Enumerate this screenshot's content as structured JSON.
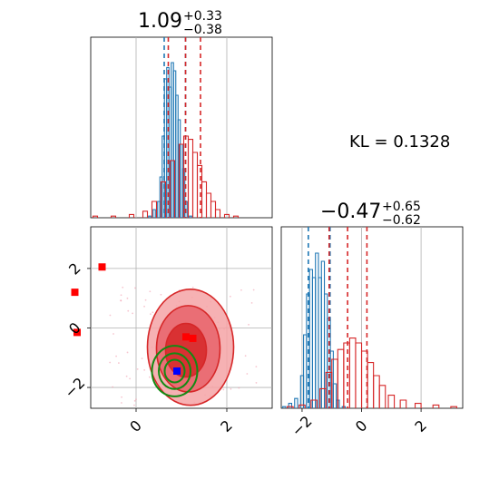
{
  "chart_data": [
    {
      "type": "histogram",
      "panel": "top-left marginal",
      "title_value": "1.09",
      "title_plus": "+0.33",
      "title_minus": "−0.38",
      "xlim": [
        -1.0,
        3.0
      ],
      "grid": true,
      "series": [
        {
          "color": "#1f77b4",
          "bin_centers": [
            0.3,
            0.4,
            0.5,
            0.55,
            0.6,
            0.65,
            0.7,
            0.75,
            0.8,
            0.85,
            0.9,
            0.95,
            1.0,
            1.05,
            1.1,
            1.2
          ],
          "counts": [
            0.01,
            0.05,
            0.1,
            0.25,
            0.5,
            0.85,
            0.92,
            0.8,
            0.95,
            0.9,
            0.75,
            0.6,
            0.45,
            0.3,
            0.1,
            0.01
          ],
          "quantile_lines": [
            0.62,
            1.09
          ]
        },
        {
          "color": "#d62728",
          "bin_centers": [
            -0.9,
            -0.5,
            -0.1,
            0.2,
            0.4,
            0.6,
            0.8,
            1.0,
            1.1,
            1.2,
            1.3,
            1.4,
            1.5,
            1.6,
            1.7,
            1.8,
            2.0,
            2.2
          ],
          "counts": [
            0.01,
            0.01,
            0.02,
            0.04,
            0.1,
            0.22,
            0.35,
            0.45,
            0.5,
            0.48,
            0.4,
            0.32,
            0.22,
            0.15,
            0.1,
            0.05,
            0.02,
            0.01
          ],
          "quantile_lines": [
            0.71,
            1.09,
            1.42
          ]
        }
      ]
    },
    {
      "type": "contour",
      "panel": "bottom-left joint",
      "xlim": [
        -1.0,
        3.0
      ],
      "ylim": [
        -2.7,
        3.4
      ],
      "xticks": [
        "0",
        "2"
      ],
      "yticks": [
        "−2",
        "0",
        "2"
      ],
      "grid": true,
      "red_markers": [
        [
          -0.75,
          2.05
        ],
        [
          -1.35,
          1.2
        ],
        [
          -1.3,
          -0.15
        ],
        [
          1.1,
          -0.3
        ],
        [
          1.25,
          -0.35
        ]
      ],
      "blue_markers": [
        [
          0.9,
          -1.45
        ]
      ],
      "red_contours": [
        {
          "cx": 1.2,
          "cy": -0.65,
          "rx": 0.95,
          "ry": 1.95
        },
        {
          "cx": 1.15,
          "cy": -0.7,
          "rx": 0.7,
          "ry": 1.45
        },
        {
          "cx": 1.1,
          "cy": -0.75,
          "rx": 0.45,
          "ry": 0.9
        }
      ],
      "green_contours": [
        {
          "cx": 0.85,
          "cy": -1.45,
          "rx": 0.5,
          "ry": 0.85
        },
        {
          "cx": 0.85,
          "cy": -1.45,
          "rx": 0.35,
          "ry": 0.6
        },
        {
          "cx": 0.85,
          "cy": -1.45,
          "rx": 0.22,
          "ry": 0.38
        }
      ]
    },
    {
      "type": "histogram",
      "panel": "bottom-right marginal",
      "title_value": "−0.47",
      "title_plus": "+0.65",
      "title_minus": "−0.62",
      "xlim": [
        -2.7,
        3.4
      ],
      "xticks": [
        "−2",
        "0",
        "2"
      ],
      "grid": true,
      "series": [
        {
          "color": "#1f77b4",
          "bin_centers": [
            -2.6,
            -2.4,
            -2.2,
            -2.0,
            -1.9,
            -1.8,
            -1.7,
            -1.6,
            -1.5,
            -1.4,
            -1.3,
            -1.2,
            -1.1,
            -1.0,
            -0.9,
            -0.8,
            -0.6
          ],
          "counts": [
            0.01,
            0.03,
            0.06,
            0.2,
            0.45,
            0.7,
            0.85,
            0.8,
            0.95,
            0.8,
            0.9,
            0.7,
            0.55,
            0.35,
            0.15,
            0.05,
            0.01
          ],
          "quantile_lines": [
            -1.79,
            -1.06
          ]
        },
        {
          "color": "#d62728",
          "bin_centers": [
            -2.4,
            -2.0,
            -1.6,
            -1.3,
            -1.1,
            -0.9,
            -0.7,
            -0.5,
            -0.3,
            -0.1,
            0.1,
            0.3,
            0.5,
            0.7,
            1.0,
            1.4,
            1.9,
            2.5,
            3.1
          ],
          "counts": [
            0.01,
            0.02,
            0.05,
            0.12,
            0.22,
            0.3,
            0.36,
            0.4,
            0.43,
            0.4,
            0.35,
            0.28,
            0.2,
            0.14,
            0.08,
            0.05,
            0.03,
            0.02,
            0.01
          ],
          "quantile_lines": [
            -1.09,
            -0.47,
            0.18
          ]
        }
      ]
    }
  ],
  "annotation": {
    "kl_text": "KL = 0.1328"
  }
}
